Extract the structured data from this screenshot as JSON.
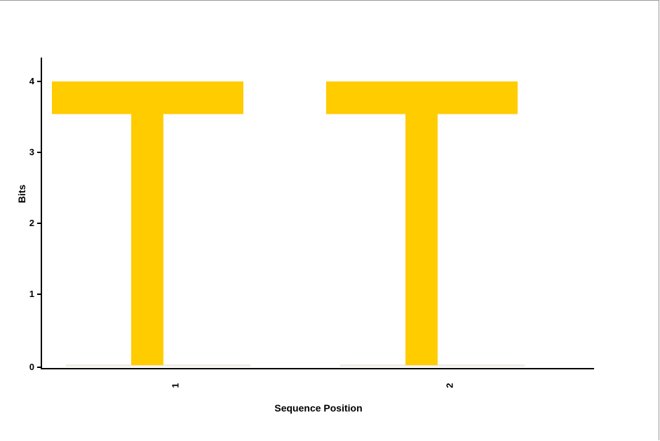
{
  "chart_data": {
    "type": "sequence-logo",
    "xlabel": "Sequence Position",
    "ylabel": "Bits",
    "ylim": [
      0,
      4
    ],
    "yticks": [
      "0",
      "1",
      "2",
      "3",
      "4"
    ],
    "positions": [
      {
        "label": "1",
        "letters": [
          {
            "letter": "T",
            "bits": 4.0,
            "color": "#ffcc00"
          }
        ]
      },
      {
        "label": "2",
        "letters": [
          {
            "letter": "T",
            "bits": 4.0,
            "color": "#ffcc00"
          }
        ]
      }
    ]
  }
}
